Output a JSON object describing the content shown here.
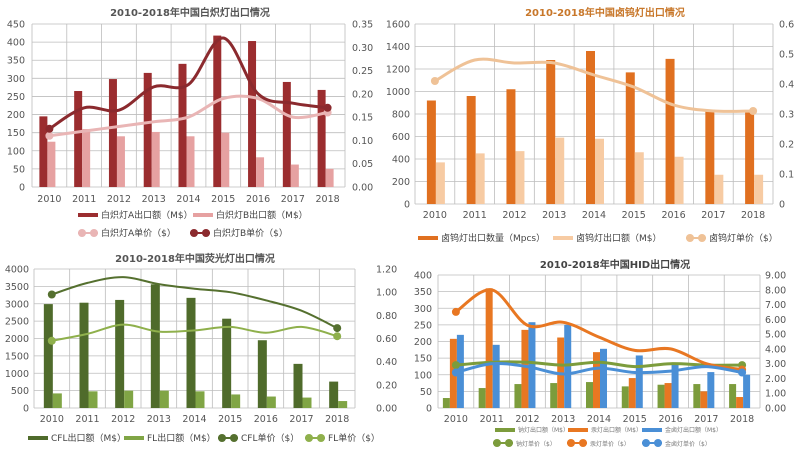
{
  "chart_data": [
    {
      "type": "bar+line",
      "title": "2010-2018年中国白炽灯出口情况",
      "title_color": "#555555",
      "categories": [
        "2010",
        "2011",
        "2012",
        "2013",
        "2014",
        "2015",
        "2016",
        "2017",
        "2018"
      ],
      "ylim": [
        0,
        450
      ],
      "yticks": [
        "0",
        "50",
        "100",
        "150",
        "200",
        "250",
        "300",
        "350",
        "400",
        "450"
      ],
      "y2lim": [
        0,
        0.35
      ],
      "y2ticks": [
        "0.00",
        "0.05",
        "0.10",
        "0.15",
        "0.20",
        "0.25",
        "0.30",
        "0.35"
      ],
      "grid": true,
      "legend": "bottom",
      "series": [
        {
          "name": "白炽灯A出口额（M$）",
          "kind": "bar",
          "axis": "left",
          "color": "#9b2d2f",
          "values": [
            195,
            265,
            298,
            315,
            340,
            418,
            403,
            290,
            268
          ]
        },
        {
          "name": "白炽灯B出口额（M$）",
          "kind": "bar",
          "axis": "left",
          "color": "#e6a1a1",
          "values": [
            125,
            160,
            140,
            152,
            140,
            150,
            82,
            62,
            50
          ]
        },
        {
          "name": "白炽灯A单价（$）",
          "kind": "line",
          "axis": "right",
          "color": "#e9b5b5",
          "values": [
            0.11,
            0.12,
            0.13,
            0.14,
            0.15,
            0.19,
            0.19,
            0.15,
            0.16
          ]
        },
        {
          "name": "白炽灯B单价（$）",
          "kind": "line",
          "axis": "right",
          "color": "#8b2a2e",
          "values": [
            0.125,
            0.17,
            0.165,
            0.215,
            0.22,
            0.32,
            0.2,
            0.18,
            0.17
          ]
        }
      ]
    },
    {
      "type": "bar+line",
      "title": "2010-2018年中国卤钨灯出口情况",
      "title_color": "#c8772a",
      "categories": [
        "2010",
        "2011",
        "2012",
        "2013",
        "2014",
        "2015",
        "2016",
        "2017",
        "2018"
      ],
      "ylim": [
        0,
        1600
      ],
      "yticks": [
        "0",
        "200",
        "400",
        "600",
        "800",
        "1000",
        "1200",
        "1400",
        "1600"
      ],
      "y2lim": [
        0,
        0.6
      ],
      "y2ticks": [
        "0",
        "0.1",
        "0.2",
        "0.3",
        "0.4",
        "0.5",
        "0.6"
      ],
      "grid": true,
      "legend": "bottom",
      "series": [
        {
          "name": "卤钨灯出口数量（Mpcs）",
          "kind": "bar",
          "axis": "left",
          "color": "#e07020",
          "values": [
            920,
            960,
            1020,
            1280,
            1360,
            1170,
            1290,
            840,
            830
          ]
        },
        {
          "name": "卤钨灯出口额（M$）",
          "kind": "bar",
          "axis": "left",
          "color": "#f7cba3",
          "values": [
            370,
            450,
            470,
            590,
            580,
            460,
            420,
            260,
            260
          ]
        },
        {
          "name": "卤钨灯单价（$）",
          "kind": "line",
          "axis": "right",
          "color": "#efc297",
          "values": [
            0.41,
            0.48,
            0.47,
            0.47,
            0.43,
            0.39,
            0.33,
            0.31,
            0.31
          ]
        }
      ]
    },
    {
      "type": "bar+line",
      "title": "2010-2018年中国荧光灯出口情况",
      "title_color": "#555555",
      "categories": [
        "2010",
        "2011",
        "2012",
        "2013",
        "2014",
        "2015",
        "2016",
        "2017",
        "2018"
      ],
      "ylim": [
        0,
        4000
      ],
      "yticks": [
        "0",
        "500",
        "1000",
        "1500",
        "2000",
        "2500",
        "3000",
        "3500",
        "4000"
      ],
      "y2lim": [
        0,
        1.2
      ],
      "y2ticks": [
        "0.00",
        "0.20",
        "0.40",
        "0.60",
        "0.80",
        "1.00",
        "1.20"
      ],
      "grid": true,
      "legend": "bottom",
      "series": [
        {
          "name": "CFL出口额（M$）",
          "kind": "bar",
          "axis": "left",
          "color": "#4f6b2b",
          "values": [
            2990,
            3030,
            3110,
            3560,
            3170,
            2570,
            1950,
            1270,
            760
          ]
        },
        {
          "name": "FL出口额（M$）",
          "kind": "bar",
          "axis": "left",
          "color": "#80a545",
          "values": [
            420,
            480,
            500,
            500,
            480,
            390,
            330,
            300,
            200
          ]
        },
        {
          "name": "CFL单价（$）",
          "kind": "line",
          "axis": "right",
          "color": "#55702f",
          "values": [
            0.98,
            1.08,
            1.13,
            1.07,
            1.03,
            1.0,
            0.93,
            0.84,
            0.69
          ]
        },
        {
          "name": "FL单价（$）",
          "kind": "line",
          "axis": "right",
          "color": "#8fb04c",
          "values": [
            0.58,
            0.64,
            0.72,
            0.66,
            0.67,
            0.7,
            0.65,
            0.7,
            0.62
          ]
        }
      ]
    },
    {
      "type": "bar+line",
      "title": "2010-2018年中国HID出口情况",
      "title_color": "#444444",
      "categories": [
        "2010",
        "2011",
        "2012",
        "2013",
        "2014",
        "2015",
        "2016",
        "2017",
        "2018"
      ],
      "ylim": [
        0,
        400
      ],
      "yticks": [
        "0",
        "50",
        "100",
        "150",
        "200",
        "250",
        "300",
        "350",
        "400"
      ],
      "y2lim": [
        0,
        9
      ],
      "y2ticks": [
        "0.00",
        "1.00",
        "2.00",
        "3.00",
        "4.00",
        "5.00",
        "6.00",
        "7.00",
        "8.00",
        "9.00"
      ],
      "grid": true,
      "legend": "bottom",
      "series": [
        {
          "name": "钠灯出口额（M$）",
          "kind": "bar",
          "axis": "left",
          "color": "#7c9c3c",
          "values": [
            30,
            60,
            72,
            75,
            78,
            65,
            70,
            72,
            72
          ]
        },
        {
          "name": "汞灯出口额（M$）",
          "kind": "bar",
          "axis": "left",
          "color": "#e87722",
          "values": [
            208,
            360,
            235,
            212,
            168,
            90,
            75,
            50,
            33
          ]
        },
        {
          "name": "金卤灯出口额（M$）",
          "kind": "bar",
          "axis": "left",
          "color": "#4a8fd6",
          "values": [
            220,
            190,
            258,
            250,
            178,
            158,
            130,
            108,
            100
          ]
        },
        {
          "name": "钠灯单价（$）",
          "kind": "line",
          "axis": "right",
          "color": "#7c9c3c",
          "values": [
            2.9,
            3.1,
            3.1,
            2.9,
            3.1,
            2.8,
            3.0,
            2.9,
            2.9
          ]
        },
        {
          "name": "汞灯单价（$）",
          "kind": "line",
          "axis": "right",
          "color": "#e87722",
          "values": [
            6.5,
            8.0,
            5.6,
            5.8,
            4.8,
            3.9,
            4.0,
            3.0,
            2.6
          ]
        },
        {
          "name": "金卤灯单价（$）",
          "kind": "line",
          "axis": "right",
          "color": "#4a8fd6",
          "values": [
            2.4,
            3.0,
            2.8,
            2.3,
            2.7,
            2.4,
            2.5,
            2.8,
            2.4
          ]
        }
      ]
    }
  ]
}
